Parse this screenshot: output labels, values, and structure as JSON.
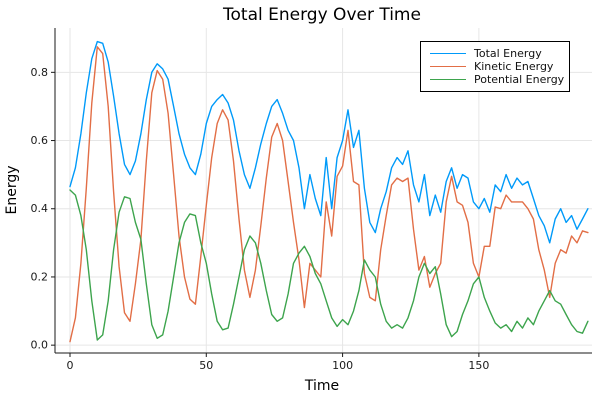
{
  "title": "Total Energy Over Time",
  "chart_data": {
    "type": "line",
    "title": "Total Energy Over Time",
    "xlabel": "Time",
    "ylabel": "Energy",
    "xlim": [
      -5.5,
      191.5
    ],
    "ylim": [
      -0.023,
      0.93
    ],
    "grid": true,
    "legend_position": "top-right",
    "xticks": {
      "values": [
        0,
        50,
        100,
        150
      ],
      "labels": [
        "0",
        "50",
        "100",
        "150"
      ]
    },
    "yticks": {
      "values": [
        0.0,
        0.2,
        0.4,
        0.6,
        0.8
      ],
      "labels": [
        "0.0",
        "0.2",
        "0.4",
        "0.6",
        "0.8"
      ]
    },
    "x": [
      0,
      2,
      4,
      6,
      8,
      10,
      12,
      14,
      16,
      18,
      20,
      22,
      24,
      26,
      28,
      30,
      32,
      34,
      36,
      38,
      40,
      42,
      44,
      46,
      48,
      50,
      52,
      54,
      56,
      58,
      60,
      62,
      64,
      66,
      68,
      70,
      72,
      74,
      76,
      78,
      80,
      82,
      84,
      86,
      88,
      90,
      92,
      94,
      96,
      98,
      100,
      102,
      104,
      106,
      108,
      110,
      112,
      114,
      116,
      118,
      120,
      122,
      124,
      126,
      128,
      130,
      132,
      134,
      136,
      138,
      140,
      142,
      144,
      146,
      148,
      150,
      152,
      154,
      156,
      158,
      160,
      162,
      164,
      166,
      168,
      170,
      172,
      174,
      176,
      178,
      180,
      182,
      184,
      186,
      188,
      190
    ],
    "series": [
      {
        "name": "Total Energy",
        "color": "#009af9",
        "values": [
          0.465,
          0.52,
          0.62,
          0.74,
          0.84,
          0.89,
          0.885,
          0.83,
          0.73,
          0.62,
          0.53,
          0.5,
          0.54,
          0.62,
          0.72,
          0.8,
          0.825,
          0.81,
          0.78,
          0.7,
          0.62,
          0.56,
          0.52,
          0.5,
          0.56,
          0.65,
          0.7,
          0.72,
          0.735,
          0.71,
          0.66,
          0.57,
          0.5,
          0.46,
          0.52,
          0.59,
          0.65,
          0.7,
          0.72,
          0.68,
          0.63,
          0.6,
          0.52,
          0.4,
          0.5,
          0.43,
          0.38,
          0.55,
          0.4,
          0.55,
          0.6,
          0.69,
          0.58,
          0.63,
          0.46,
          0.36,
          0.33,
          0.4,
          0.45,
          0.52,
          0.55,
          0.53,
          0.57,
          0.47,
          0.42,
          0.5,
          0.38,
          0.44,
          0.39,
          0.48,
          0.52,
          0.46,
          0.5,
          0.49,
          0.42,
          0.4,
          0.43,
          0.39,
          0.47,
          0.45,
          0.5,
          0.46,
          0.49,
          0.47,
          0.48,
          0.43,
          0.38,
          0.35,
          0.3,
          0.37,
          0.4,
          0.36,
          0.38,
          0.34,
          0.37,
          0.4
        ]
      },
      {
        "name": "Kinetic Energy",
        "color": "#e26e46",
        "values": [
          0.01,
          0.08,
          0.24,
          0.46,
          0.71,
          0.875,
          0.855,
          0.7,
          0.45,
          0.23,
          0.095,
          0.07,
          0.18,
          0.31,
          0.54,
          0.74,
          0.805,
          0.78,
          0.68,
          0.5,
          0.32,
          0.2,
          0.135,
          0.12,
          0.26,
          0.41,
          0.55,
          0.65,
          0.69,
          0.66,
          0.54,
          0.37,
          0.22,
          0.14,
          0.22,
          0.35,
          0.49,
          0.61,
          0.65,
          0.6,
          0.48,
          0.36,
          0.25,
          0.11,
          0.24,
          0.22,
          0.2,
          0.42,
          0.32,
          0.495,
          0.525,
          0.63,
          0.48,
          0.47,
          0.21,
          0.14,
          0.13,
          0.28,
          0.38,
          0.47,
          0.49,
          0.48,
          0.49,
          0.34,
          0.22,
          0.26,
          0.17,
          0.21,
          0.24,
          0.42,
          0.495,
          0.42,
          0.41,
          0.36,
          0.24,
          0.2,
          0.29,
          0.29,
          0.405,
          0.4,
          0.44,
          0.42,
          0.42,
          0.42,
          0.4,
          0.37,
          0.28,
          0.22,
          0.14,
          0.24,
          0.28,
          0.27,
          0.32,
          0.3,
          0.335,
          0.33
        ]
      },
      {
        "name": "Potential Energy",
        "color": "#3da44d",
        "values": [
          0.455,
          0.44,
          0.38,
          0.28,
          0.13,
          0.015,
          0.03,
          0.13,
          0.28,
          0.39,
          0.435,
          0.43,
          0.36,
          0.31,
          0.18,
          0.06,
          0.02,
          0.03,
          0.1,
          0.2,
          0.3,
          0.36,
          0.385,
          0.38,
          0.3,
          0.24,
          0.15,
          0.07,
          0.045,
          0.05,
          0.12,
          0.2,
          0.28,
          0.32,
          0.3,
          0.24,
          0.16,
          0.09,
          0.07,
          0.08,
          0.15,
          0.24,
          0.27,
          0.29,
          0.26,
          0.21,
          0.18,
          0.13,
          0.08,
          0.055,
          0.075,
          0.06,
          0.1,
          0.16,
          0.25,
          0.22,
          0.2,
          0.12,
          0.07,
          0.05,
          0.06,
          0.05,
          0.08,
          0.13,
          0.2,
          0.24,
          0.21,
          0.23,
          0.15,
          0.06,
          0.025,
          0.04,
          0.09,
          0.13,
          0.18,
          0.2,
          0.14,
          0.1,
          0.065,
          0.05,
          0.06,
          0.04,
          0.07,
          0.05,
          0.08,
          0.06,
          0.1,
          0.13,
          0.16,
          0.13,
          0.12,
          0.09,
          0.06,
          0.04,
          0.035,
          0.07
        ]
      }
    ]
  }
}
